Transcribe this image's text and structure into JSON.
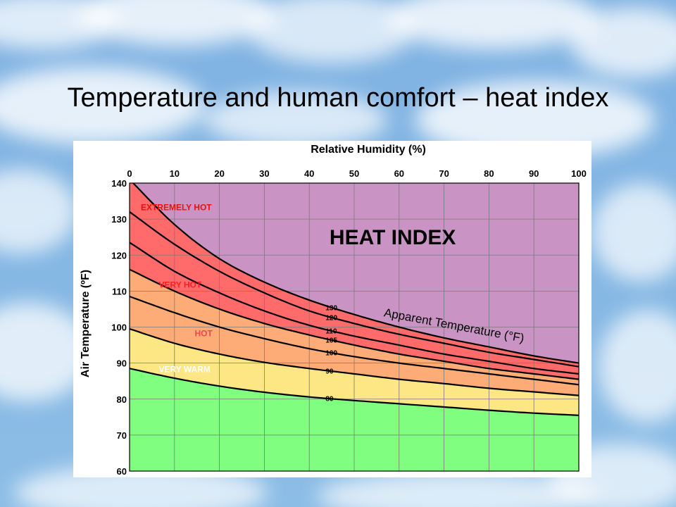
{
  "slide": {
    "title": "Temperature and human comfort – heat index"
  },
  "chart_data": {
    "type": "line",
    "title": "HEAT INDEX",
    "xlabel": "Relative Humidity (%)",
    "ylabel": "Air Temperature (ºF)",
    "xlim": [
      0,
      100
    ],
    "ylim": [
      60,
      140
    ],
    "x_ticks": [
      0,
      10,
      20,
      30,
      40,
      50,
      60,
      70,
      80,
      90,
      100
    ],
    "y_ticks": [
      60,
      70,
      80,
      90,
      100,
      110,
      120,
      130,
      140
    ],
    "grid": true,
    "curve_annotation": "Apparent Temperature (°F)",
    "x": [
      0,
      10,
      20,
      30,
      40,
      50,
      60,
      70,
      80,
      90,
      100
    ],
    "series": [
      {
        "name": "130",
        "values": [
          141,
          128.5,
          119,
          112.5,
          107.5,
          103.5,
          100,
          97,
          94.5,
          92,
          90
        ]
      },
      {
        "name": "120",
        "values": [
          132,
          123,
          115.5,
          109.5,
          104.5,
          101,
          98,
          95.5,
          93,
          91,
          89
        ]
      },
      {
        "name": "110",
        "values": [
          123.5,
          115.5,
          109.5,
          104.5,
          100.5,
          97.5,
          95,
          92.5,
          90.5,
          88.5,
          87
        ]
      },
      {
        "name": "105",
        "values": [
          116,
          110,
          105,
          101,
          97.8,
          95,
          92.5,
          90.5,
          88.5,
          87,
          85.5
        ]
      },
      {
        "name": "100",
        "values": [
          108.5,
          104,
          100,
          96.8,
          94,
          91.8,
          90,
          88.5,
          87,
          85.5,
          84
        ]
      },
      {
        "name": "90",
        "values": [
          99.5,
          95.5,
          92.5,
          90.2,
          88.5,
          87,
          85.5,
          84.3,
          83,
          82,
          81
        ]
      },
      {
        "name": "80",
        "values": [
          88.5,
          85.8,
          83.6,
          81.9,
          80.6,
          79.6,
          78.7,
          77.8,
          76.9,
          76.1,
          75.5
        ]
      }
    ],
    "zones": [
      {
        "name": "EXTREMELY HOT",
        "color": "#c994c3"
      },
      {
        "name": "VERY HOT",
        "color": "#ff6b6b"
      },
      {
        "name": "HOT",
        "color": "#fdac77"
      },
      {
        "name": "VERY WARM",
        "color": "#fde684"
      },
      {
        "name": "",
        "color": "#80fe80"
      }
    ],
    "zone_labels": [
      {
        "text": "EXTREMELY HOT",
        "x": 2.5,
        "y": 132.5,
        "color": "#e81010"
      },
      {
        "text": "VERY HOT",
        "x": 6.5,
        "y": 111,
        "color": "#ff2020"
      },
      {
        "text": "HOT",
        "x": 14.5,
        "y": 97.5,
        "color": "#e64b4b"
      },
      {
        "text": "VERY WARM",
        "x": 6.5,
        "y": 87.5,
        "color": "#ffffff"
      }
    ],
    "colors": {
      "purple": "#c994c3",
      "red": "#ff6b6b",
      "orange": "#fdac77",
      "yellow": "#fde684",
      "green": "#80fe80",
      "line": "#000000",
      "grid": "#7a7a7a"
    }
  }
}
